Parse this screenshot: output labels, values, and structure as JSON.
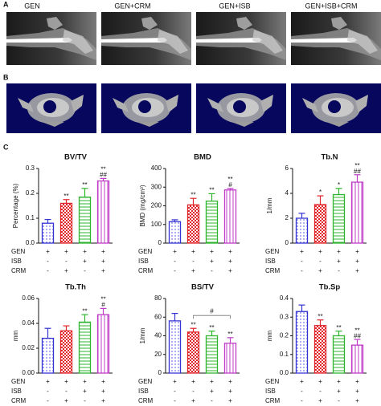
{
  "panel_a": {
    "label": "A",
    "images": [
      "GEN",
      "GEN+CRM",
      "GEN+ISB",
      "GEN+ISB+CRM"
    ]
  },
  "panel_b": {
    "label": "B"
  },
  "panel_c": {
    "label": "C"
  },
  "chart_data": [
    {
      "type": "bar",
      "title": "BV/TV",
      "ylabel": "Percentage (%)",
      "categories": [
        null,
        null,
        null,
        null
      ],
      "values": [
        0.08,
        0.16,
        0.185,
        0.25
      ],
      "errors": [
        0.015,
        0.015,
        0.035,
        0.01
      ],
      "annotations": [
        [],
        [
          "**"
        ],
        [
          "**"
        ],
        [
          "**",
          "##"
        ]
      ],
      "ylim": [
        0,
        0.3
      ],
      "yticks": [
        {
          "value": 0,
          "label": "0.0"
        },
        0.1,
        0.2,
        0.3
      ],
      "colors": [
        "#3434d4",
        "#e0252b",
        "#2db52d",
        "#c03cc8"
      ],
      "patterns": [
        "dots",
        "checks",
        "hlines",
        "vlines"
      ],
      "treatment_table": [
        {
          "label": "GEN",
          "marks": [
            "+",
            "+",
            "+",
            "+"
          ]
        },
        {
          "label": "ISB",
          "marks": [
            "-",
            "-",
            "+",
            "+"
          ]
        },
        {
          "label": "CRM",
          "marks": [
            "-",
            "+",
            "-",
            "+"
          ]
        }
      ]
    },
    {
      "type": "bar",
      "title": "BMD",
      "ylabel": "BMD (mg/cm³)",
      "categories": [
        null,
        null,
        null,
        null
      ],
      "values": [
        115,
        205,
        225,
        285
      ],
      "errors": [
        10,
        35,
        40,
        8
      ],
      "annotations": [
        [],
        [
          "**"
        ],
        [
          "**"
        ],
        [
          "**",
          "#"
        ]
      ],
      "ylim": [
        0,
        400
      ],
      "yticks": [
        0,
        100,
        200,
        300,
        400
      ],
      "colors": [
        "#3434d4",
        "#e0252b",
        "#2db52d",
        "#c03cc8"
      ],
      "patterns": [
        "dots",
        "checks",
        "hlines",
        "vlines"
      ],
      "treatment_table": [
        {
          "label": "GEN",
          "marks": [
            "+",
            "+",
            "+",
            "+"
          ]
        },
        {
          "label": "ISB",
          "marks": [
            "-",
            "-",
            "+",
            "+"
          ]
        },
        {
          "label": "CRM",
          "marks": [
            "-",
            "+",
            "-",
            "+"
          ]
        }
      ]
    },
    {
      "type": "bar",
      "title": "Tb.N",
      "ylabel": "1/mm",
      "categories": [
        null,
        null,
        null,
        null
      ],
      "values": [
        2.0,
        3.1,
        3.9,
        4.9
      ],
      "errors": [
        0.4,
        0.7,
        0.5,
        0.6
      ],
      "annotations": [
        [],
        [
          "*"
        ],
        [
          "*"
        ],
        [
          "**",
          "##"
        ]
      ],
      "ylim": [
        0,
        6
      ],
      "yticks": [
        0,
        2,
        4,
        6
      ],
      "colors": [
        "#3434d4",
        "#e0252b",
        "#2db52d",
        "#c03cc8"
      ],
      "patterns": [
        "dots",
        "checks",
        "hlines",
        "vlines"
      ],
      "treatment_table": [
        {
          "label": "GEN",
          "marks": [
            "+",
            "+",
            "+",
            "+"
          ]
        },
        {
          "label": "ISB",
          "marks": [
            "-",
            "-",
            "+",
            "+"
          ]
        },
        {
          "label": "CRM",
          "marks": [
            "-",
            "+",
            "-",
            "+"
          ]
        }
      ]
    },
    {
      "type": "bar",
      "title": "Tb.Th",
      "ylabel": "mm",
      "categories": [
        null,
        null,
        null,
        null
      ],
      "values": [
        0.028,
        0.034,
        0.041,
        0.047
      ],
      "errors": [
        0.008,
        0.004,
        0.006,
        0.005
      ],
      "annotations": [
        [],
        [],
        [
          "**"
        ],
        [
          "**",
          "#"
        ]
      ],
      "ylim": [
        0,
        0.06
      ],
      "yticks": [
        {
          "value": 0,
          "label": "0.00"
        },
        0.02,
        0.04,
        0.06
      ],
      "colors": [
        "#3434d4",
        "#e0252b",
        "#2db52d",
        "#c03cc8"
      ],
      "patterns": [
        "dots",
        "checks",
        "hlines",
        "vlines"
      ],
      "treatment_table": [
        {
          "label": "GEN",
          "marks": [
            "+",
            "+",
            "+",
            "+"
          ]
        },
        {
          "label": "ISB",
          "marks": [
            "-",
            "-",
            "+",
            "+"
          ]
        },
        {
          "label": "CRM",
          "marks": [
            "-",
            "+",
            "-",
            "+"
          ]
        }
      ]
    },
    {
      "type": "bar",
      "title": "BS/TV",
      "ylabel": "1/mm",
      "categories": [
        null,
        null,
        null,
        null
      ],
      "values": [
        56,
        44,
        40,
        32
      ],
      "errors": [
        8,
        4,
        5,
        6
      ],
      "annotations": [
        [],
        [
          "**"
        ],
        [
          "**"
        ],
        [
          "**"
        ]
      ],
      "brackets": [
        {
          "from": 1,
          "to": 3,
          "label": "#"
        }
      ],
      "ylim": [
        0,
        80
      ],
      "yticks": [
        0,
        20,
        40,
        60,
        80
      ],
      "colors": [
        "#3434d4",
        "#e0252b",
        "#2db52d",
        "#c03cc8"
      ],
      "patterns": [
        "dots",
        "checks",
        "hlines",
        "vlines"
      ],
      "treatment_table": [
        {
          "label": "GEN",
          "marks": [
            "+",
            "+",
            "+",
            "+"
          ]
        },
        {
          "label": "ISB",
          "marks": [
            "-",
            "-",
            "+",
            "+"
          ]
        },
        {
          "label": "CRM",
          "marks": [
            "-",
            "+",
            "-",
            "+"
          ]
        }
      ]
    },
    {
      "type": "bar",
      "title": "Tb.Sp",
      "ylabel": "mm",
      "categories": [
        null,
        null,
        null,
        null
      ],
      "values": [
        0.33,
        0.255,
        0.2,
        0.15
      ],
      "errors": [
        0.035,
        0.03,
        0.025,
        0.03
      ],
      "annotations": [
        [],
        [
          "**"
        ],
        [
          "**"
        ],
        [
          "**",
          "##"
        ]
      ],
      "ylim": [
        0,
        0.4
      ],
      "yticks": [
        {
          "value": 0,
          "label": "0.0"
        },
        0.1,
        0.2,
        0.3,
        0.4
      ],
      "colors": [
        "#3434d4",
        "#e0252b",
        "#2db52d",
        "#c03cc8"
      ],
      "patterns": [
        "dots",
        "checks",
        "hlines",
        "vlines"
      ],
      "treatment_table": [
        {
          "label": "GEN",
          "marks": [
            "+",
            "+",
            "+",
            "+"
          ]
        },
        {
          "label": "ISB",
          "marks": [
            "-",
            "-",
            "+",
            "+"
          ]
        },
        {
          "label": "CRM",
          "marks": [
            "-",
            "+",
            "-",
            "+"
          ]
        }
      ]
    }
  ]
}
